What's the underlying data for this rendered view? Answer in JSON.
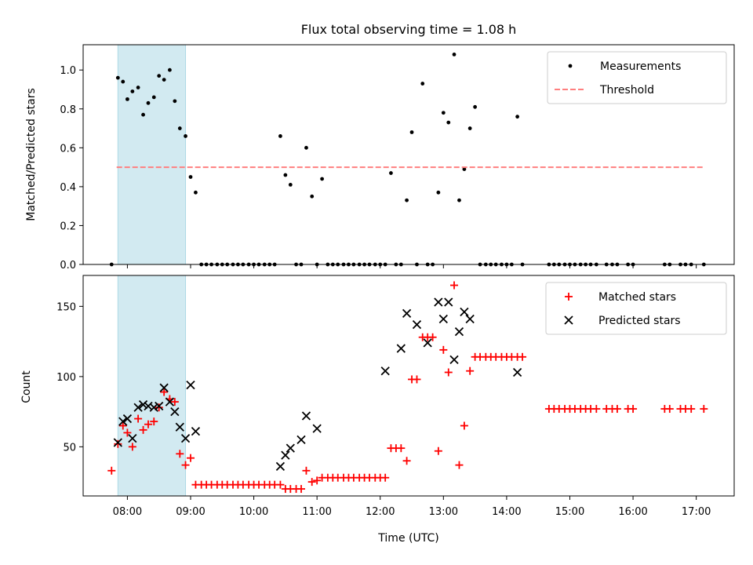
{
  "title": "Flux total observing time = 1.08 h",
  "chart_data": [
    {
      "type": "scatter",
      "ylabel": "Matched/Predicted stars",
      "xlabel": "",
      "ylim": [
        0,
        1.13
      ],
      "yticks": [
        "0.0",
        "0.2",
        "0.4",
        "0.6",
        "0.8",
        "1.0"
      ],
      "ytick_values": [
        0,
        0.2,
        0.4,
        0.6,
        0.8,
        1.0
      ],
      "xlim_hours": [
        7.3,
        17.6
      ],
      "highlight_span_hours": [
        7.85,
        8.92
      ],
      "highlight_color": "#add8e6",
      "legend_position": "top-right",
      "series": [
        {
          "name": "Measurements",
          "kind": "points",
          "color": "#000000",
          "x_hours": [
            7.75,
            7.85,
            7.93,
            8.0,
            8.08,
            8.17,
            8.25,
            8.33,
            8.42,
            8.5,
            8.58,
            8.67,
            8.75,
            8.83,
            8.92,
            9.0,
            9.08,
            9.17,
            9.25,
            9.33,
            9.42,
            9.5,
            9.58,
            9.67,
            9.75,
            9.83,
            9.92,
            10.0,
            10.08,
            10.17,
            10.25,
            10.33,
            10.42,
            10.5,
            10.58,
            10.67,
            10.75,
            10.83,
            10.92,
            11.0,
            11.08,
            11.17,
            11.25,
            11.33,
            11.42,
            11.5,
            11.58,
            11.67,
            11.75,
            11.83,
            11.92,
            12.0,
            12.08,
            12.17,
            12.25,
            12.33,
            12.42,
            12.5,
            12.58,
            12.67,
            12.75,
            12.83,
            12.92,
            13.0,
            13.08,
            13.17,
            13.25,
            13.33,
            13.42,
            13.5,
            13.58,
            13.67,
            13.75,
            13.83,
            13.92,
            14.0,
            14.08,
            14.17,
            14.25,
            14.67,
            14.75,
            14.83,
            14.92,
            15.0,
            15.08,
            15.17,
            15.25,
            15.33,
            15.42,
            15.58,
            15.67,
            15.75,
            15.92,
            16.0,
            16.5,
            16.58,
            16.75,
            16.83,
            16.92,
            17.12
          ],
          "y": [
            0.0,
            0.96,
            0.94,
            0.85,
            0.89,
            0.91,
            0.77,
            0.83,
            0.86,
            0.97,
            0.95,
            1.0,
            0.84,
            0.7,
            0.66,
            0.45,
            0.37,
            0.0,
            0.0,
            0.0,
            0.0,
            0.0,
            0.0,
            0.0,
            0.0,
            0.0,
            0.0,
            0.0,
            0.0,
            0.0,
            0.0,
            0.0,
            0.66,
            0.46,
            0.41,
            0.0,
            0.0,
            0.6,
            0.35,
            0.0,
            0.44,
            0.0,
            0.0,
            0.0,
            0.0,
            0.0,
            0.0,
            0.0,
            0.0,
            0.0,
            0.0,
            0.0,
            0.0,
            0.47,
            0.0,
            0.0,
            0.33,
            0.68,
            0.0,
            0.93,
            0.0,
            0.0,
            0.37,
            0.78,
            0.73,
            1.08,
            0.33,
            0.49,
            0.7,
            0.81,
            0.0,
            0.0,
            0.0,
            0.0,
            0.0,
            0.0,
            0.0,
            0.76,
            0.0,
            0.0,
            0.0,
            0.0,
            0.0,
            0.0,
            0.0,
            0.0,
            0.0,
            0.0,
            0.0,
            0.0,
            0.0,
            0.0,
            0.0,
            0.0,
            0.0,
            0.0,
            0.0,
            0.0,
            0.0,
            0.0
          ]
        },
        {
          "name": "Threshold",
          "kind": "dashed-line",
          "color": "#ff7f7f",
          "x_hours": [
            7.83,
            17.12
          ],
          "y": [
            0.5,
            0.5
          ]
        }
      ]
    },
    {
      "type": "scatter",
      "ylabel": "Count",
      "xlabel": "Time (UTC)",
      "ylim": [
        15,
        172
      ],
      "yticks": [
        "50",
        "100",
        "150"
      ],
      "ytick_values": [
        50,
        100,
        150
      ],
      "xlim_hours": [
        7.3,
        17.6
      ],
      "xticks": [
        "08:00",
        "09:00",
        "10:00",
        "11:00",
        "12:00",
        "13:00",
        "14:00",
        "15:00",
        "16:00",
        "17:00"
      ],
      "xtick_hours": [
        8,
        9,
        10,
        11,
        12,
        13,
        14,
        15,
        16,
        17
      ],
      "highlight_span_hours": [
        7.85,
        8.92
      ],
      "highlight_color": "#add8e6",
      "legend_position": "top-right",
      "series": [
        {
          "name": "Matched stars",
          "kind": "plus",
          "color": "#ff0000",
          "x_hours": [
            7.75,
            7.85,
            7.93,
            8.0,
            8.08,
            8.17,
            8.25,
            8.33,
            8.42,
            8.5,
            8.58,
            8.67,
            8.75,
            8.83,
            8.92,
            9.0,
            9.08,
            9.17,
            9.25,
            9.33,
            9.42,
            9.5,
            9.58,
            9.67,
            9.75,
            9.83,
            9.92,
            10.0,
            10.08,
            10.17,
            10.25,
            10.33,
            10.42,
            10.5,
            10.58,
            10.67,
            10.75,
            10.83,
            10.92,
            11.0,
            11.08,
            11.17,
            11.25,
            11.33,
            11.42,
            11.5,
            11.58,
            11.67,
            11.75,
            11.83,
            11.92,
            12.0,
            12.08,
            12.17,
            12.25,
            12.33,
            12.42,
            12.5,
            12.58,
            12.67,
            12.75,
            12.83,
            12.92,
            13.0,
            13.08,
            13.17,
            13.25,
            13.33,
            13.42,
            13.5,
            13.58,
            13.67,
            13.75,
            13.83,
            13.92,
            14.0,
            14.08,
            14.17,
            14.25,
            14.67,
            14.75,
            14.83,
            14.92,
            15.0,
            15.08,
            15.17,
            15.25,
            15.33,
            15.42,
            15.58,
            15.67,
            15.75,
            15.92,
            16.0,
            16.5,
            16.58,
            16.75,
            16.83,
            16.92,
            17.12
          ],
          "y": [
            33,
            52,
            65,
            60,
            50,
            70,
            62,
            66,
            68,
            78,
            89,
            84,
            82,
            45,
            37,
            42,
            23,
            23,
            23,
            23,
            23,
            23,
            23,
            23,
            23,
            23,
            23,
            23,
            23,
            23,
            23,
            23,
            23,
            20,
            20,
            20,
            20,
            33,
            25,
            26,
            28,
            28,
            28,
            28,
            28,
            28,
            28,
            28,
            28,
            28,
            28,
            28,
            28,
            49,
            49,
            49,
            40,
            98,
            98,
            128,
            128,
            128,
            47,
            119,
            103,
            165,
            37,
            65,
            104,
            114,
            114,
            114,
            114,
            114,
            114,
            114,
            114,
            114,
            114,
            77,
            77,
            77,
            77,
            77,
            77,
            77,
            77,
            77,
            77,
            77,
            77,
            77,
            77,
            77,
            77,
            77,
            77,
            77,
            77,
            77
          ],
          "skip_first_after_hours": 14.25
        },
        {
          "name": "Predicted stars",
          "kind": "x",
          "color": "#000000",
          "x_hours": [
            7.85,
            7.93,
            8.0,
            8.08,
            8.17,
            8.25,
            8.33,
            8.42,
            8.5,
            8.58,
            8.67,
            8.75,
            8.83,
            8.92,
            9.0,
            9.08,
            10.42,
            10.5,
            10.58,
            10.75,
            10.83,
            11.0,
            12.08,
            12.33,
            12.42,
            12.58,
            12.75,
            12.92,
            13.0,
            13.08,
            13.17,
            13.25,
            13.33,
            13.42,
            14.17
          ],
          "y": [
            53,
            68,
            70,
            56,
            78,
            80,
            79,
            78,
            79,
            92,
            82,
            75,
            64,
            56,
            94,
            61,
            36,
            44,
            49,
            55,
            72,
            63,
            104,
            120,
            145,
            137,
            124,
            153,
            141,
            153,
            112,
            132,
            146,
            141,
            103
          ]
        }
      ]
    }
  ]
}
